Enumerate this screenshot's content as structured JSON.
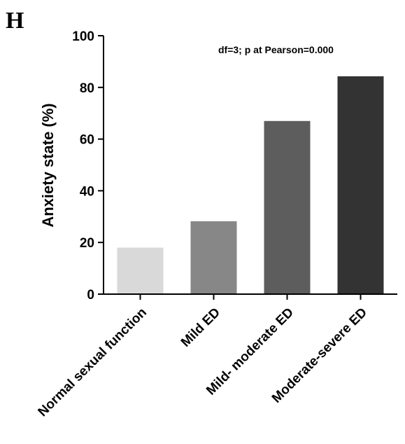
{
  "panel_label": "H",
  "chart_data": {
    "type": "bar",
    "categories": [
      "Normal sexual function",
      "Mild ED",
      "Mild- moderate ED",
      "Moderate-severe ED"
    ],
    "values": [
      18,
      28.2,
      67,
      84.3
    ],
    "ylabel": "Anxiety state (%)",
    "xlabel": "",
    "ylim": [
      0,
      100
    ],
    "yticks": [
      0,
      20,
      40,
      60,
      80,
      100
    ],
    "annotation": "df=3; p at Pearson=0.000",
    "colors": [
      "#d9d9d9",
      "#878787",
      "#5d5d5d",
      "#333333"
    ],
    "grid": false,
    "legend": "none"
  }
}
